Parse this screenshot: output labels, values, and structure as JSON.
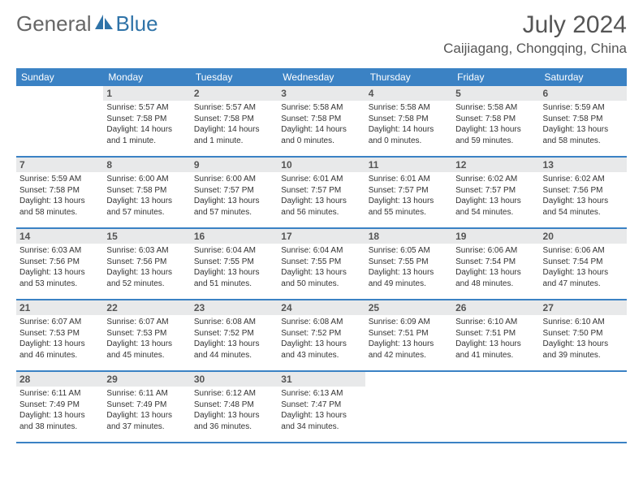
{
  "logo": {
    "general": "General",
    "blue": "Blue"
  },
  "header": {
    "month_title": "July 2024",
    "location": "Caijiagang, Chongqing, China"
  },
  "colors": {
    "header_bar": "#3b82c4",
    "day_number_bg": "#e8e9ea",
    "border": "#3b82c4",
    "text": "#333333",
    "logo_blue": "#2f73a8"
  },
  "weekdays": [
    "Sunday",
    "Monday",
    "Tuesday",
    "Wednesday",
    "Thursday",
    "Friday",
    "Saturday"
  ],
  "days": [
    {
      "n": "",
      "sunrise": "",
      "sunset": "",
      "daylight": ""
    },
    {
      "n": "1",
      "sunrise": "Sunrise: 5:57 AM",
      "sunset": "Sunset: 7:58 PM",
      "daylight": "Daylight: 14 hours and 1 minute."
    },
    {
      "n": "2",
      "sunrise": "Sunrise: 5:57 AM",
      "sunset": "Sunset: 7:58 PM",
      "daylight": "Daylight: 14 hours and 1 minute."
    },
    {
      "n": "3",
      "sunrise": "Sunrise: 5:58 AM",
      "sunset": "Sunset: 7:58 PM",
      "daylight": "Daylight: 14 hours and 0 minutes."
    },
    {
      "n": "4",
      "sunrise": "Sunrise: 5:58 AM",
      "sunset": "Sunset: 7:58 PM",
      "daylight": "Daylight: 14 hours and 0 minutes."
    },
    {
      "n": "5",
      "sunrise": "Sunrise: 5:58 AM",
      "sunset": "Sunset: 7:58 PM",
      "daylight": "Daylight: 13 hours and 59 minutes."
    },
    {
      "n": "6",
      "sunrise": "Sunrise: 5:59 AM",
      "sunset": "Sunset: 7:58 PM",
      "daylight": "Daylight: 13 hours and 58 minutes."
    },
    {
      "n": "7",
      "sunrise": "Sunrise: 5:59 AM",
      "sunset": "Sunset: 7:58 PM",
      "daylight": "Daylight: 13 hours and 58 minutes."
    },
    {
      "n": "8",
      "sunrise": "Sunrise: 6:00 AM",
      "sunset": "Sunset: 7:58 PM",
      "daylight": "Daylight: 13 hours and 57 minutes."
    },
    {
      "n": "9",
      "sunrise": "Sunrise: 6:00 AM",
      "sunset": "Sunset: 7:57 PM",
      "daylight": "Daylight: 13 hours and 57 minutes."
    },
    {
      "n": "10",
      "sunrise": "Sunrise: 6:01 AM",
      "sunset": "Sunset: 7:57 PM",
      "daylight": "Daylight: 13 hours and 56 minutes."
    },
    {
      "n": "11",
      "sunrise": "Sunrise: 6:01 AM",
      "sunset": "Sunset: 7:57 PM",
      "daylight": "Daylight: 13 hours and 55 minutes."
    },
    {
      "n": "12",
      "sunrise": "Sunrise: 6:02 AM",
      "sunset": "Sunset: 7:57 PM",
      "daylight": "Daylight: 13 hours and 54 minutes."
    },
    {
      "n": "13",
      "sunrise": "Sunrise: 6:02 AM",
      "sunset": "Sunset: 7:56 PM",
      "daylight": "Daylight: 13 hours and 54 minutes."
    },
    {
      "n": "14",
      "sunrise": "Sunrise: 6:03 AM",
      "sunset": "Sunset: 7:56 PM",
      "daylight": "Daylight: 13 hours and 53 minutes."
    },
    {
      "n": "15",
      "sunrise": "Sunrise: 6:03 AM",
      "sunset": "Sunset: 7:56 PM",
      "daylight": "Daylight: 13 hours and 52 minutes."
    },
    {
      "n": "16",
      "sunrise": "Sunrise: 6:04 AM",
      "sunset": "Sunset: 7:55 PM",
      "daylight": "Daylight: 13 hours and 51 minutes."
    },
    {
      "n": "17",
      "sunrise": "Sunrise: 6:04 AM",
      "sunset": "Sunset: 7:55 PM",
      "daylight": "Daylight: 13 hours and 50 minutes."
    },
    {
      "n": "18",
      "sunrise": "Sunrise: 6:05 AM",
      "sunset": "Sunset: 7:55 PM",
      "daylight": "Daylight: 13 hours and 49 minutes."
    },
    {
      "n": "19",
      "sunrise": "Sunrise: 6:06 AM",
      "sunset": "Sunset: 7:54 PM",
      "daylight": "Daylight: 13 hours and 48 minutes."
    },
    {
      "n": "20",
      "sunrise": "Sunrise: 6:06 AM",
      "sunset": "Sunset: 7:54 PM",
      "daylight": "Daylight: 13 hours and 47 minutes."
    },
    {
      "n": "21",
      "sunrise": "Sunrise: 6:07 AM",
      "sunset": "Sunset: 7:53 PM",
      "daylight": "Daylight: 13 hours and 46 minutes."
    },
    {
      "n": "22",
      "sunrise": "Sunrise: 6:07 AM",
      "sunset": "Sunset: 7:53 PM",
      "daylight": "Daylight: 13 hours and 45 minutes."
    },
    {
      "n": "23",
      "sunrise": "Sunrise: 6:08 AM",
      "sunset": "Sunset: 7:52 PM",
      "daylight": "Daylight: 13 hours and 44 minutes."
    },
    {
      "n": "24",
      "sunrise": "Sunrise: 6:08 AM",
      "sunset": "Sunset: 7:52 PM",
      "daylight": "Daylight: 13 hours and 43 minutes."
    },
    {
      "n": "25",
      "sunrise": "Sunrise: 6:09 AM",
      "sunset": "Sunset: 7:51 PM",
      "daylight": "Daylight: 13 hours and 42 minutes."
    },
    {
      "n": "26",
      "sunrise": "Sunrise: 6:10 AM",
      "sunset": "Sunset: 7:51 PM",
      "daylight": "Daylight: 13 hours and 41 minutes."
    },
    {
      "n": "27",
      "sunrise": "Sunrise: 6:10 AM",
      "sunset": "Sunset: 7:50 PM",
      "daylight": "Daylight: 13 hours and 39 minutes."
    },
    {
      "n": "28",
      "sunrise": "Sunrise: 6:11 AM",
      "sunset": "Sunset: 7:49 PM",
      "daylight": "Daylight: 13 hours and 38 minutes."
    },
    {
      "n": "29",
      "sunrise": "Sunrise: 6:11 AM",
      "sunset": "Sunset: 7:49 PM",
      "daylight": "Daylight: 13 hours and 37 minutes."
    },
    {
      "n": "30",
      "sunrise": "Sunrise: 6:12 AM",
      "sunset": "Sunset: 7:48 PM",
      "daylight": "Daylight: 13 hours and 36 minutes."
    },
    {
      "n": "31",
      "sunrise": "Sunrise: 6:13 AM",
      "sunset": "Sunset: 7:47 PM",
      "daylight": "Daylight: 13 hours and 34 minutes."
    },
    {
      "n": "",
      "sunrise": "",
      "sunset": "",
      "daylight": ""
    },
    {
      "n": "",
      "sunrise": "",
      "sunset": "",
      "daylight": ""
    },
    {
      "n": "",
      "sunrise": "",
      "sunset": "",
      "daylight": ""
    }
  ]
}
